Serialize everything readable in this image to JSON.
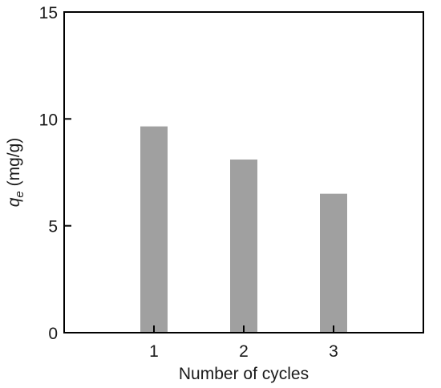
{
  "chart_data": {
    "type": "bar",
    "title": "",
    "xlabel": "Number of cycles",
    "ylabel_symbol": "q",
    "ylabel_subscript": "e",
    "ylabel_unit": " (mg/g)",
    "categories": [
      "1",
      "2",
      "3"
    ],
    "values": [
      9.65,
      8.1,
      6.5
    ],
    "ylim": [
      0,
      15
    ],
    "yticks": [
      0,
      5,
      10,
      15
    ],
    "xlim": [
      0,
      4
    ],
    "bar_color": "#a0a0a0",
    "axis_color": "#000000",
    "grid": false,
    "legend": "none"
  }
}
